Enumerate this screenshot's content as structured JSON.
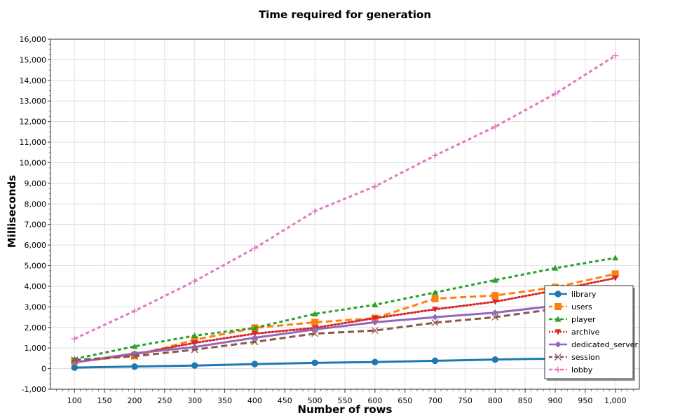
{
  "chart_data": {
    "type": "line",
    "title": "Time required for generation",
    "xlabel": "Number of rows",
    "ylabel": "Milliseconds",
    "xlim": [
      60,
      1040
    ],
    "ylim": [
      -1000,
      16000
    ],
    "x_ticks": [
      100,
      150,
      200,
      250,
      300,
      350,
      400,
      450,
      500,
      550,
      600,
      650,
      700,
      750,
      800,
      850,
      900,
      950,
      1000
    ],
    "x_tick_labels": [
      "100",
      "150",
      "200",
      "250",
      "300",
      "350",
      "400",
      "450",
      "500",
      "550",
      "600",
      "650",
      "700",
      "750",
      "800",
      "850",
      "900",
      "950",
      "1,000"
    ],
    "y_ticks": [
      -1000,
      0,
      1000,
      2000,
      3000,
      4000,
      5000,
      6000,
      7000,
      8000,
      9000,
      10000,
      11000,
      12000,
      13000,
      14000,
      15000,
      16000
    ],
    "y_tick_labels": [
      "-1,000",
      "0",
      "1,000",
      "2,000",
      "3,000",
      "4,000",
      "5,000",
      "6,000",
      "7,000",
      "8,000",
      "9,000",
      "10,000",
      "11,000",
      "12,000",
      "13,000",
      "14,000",
      "15,000",
      "16,000"
    ],
    "grid": true,
    "legend_position": "bottom-right",
    "x": [
      100,
      200,
      300,
      400,
      500,
      600,
      700,
      800,
      900,
      1000
    ],
    "series": [
      {
        "name": "library",
        "color": "#1f77b4",
        "dash": "solid",
        "marker": "circle",
        "values": [
          50,
          100,
          150,
          220,
          280,
          320,
          380,
          440,
          490,
          540
        ]
      },
      {
        "name": "users",
        "color": "#ff7f0e",
        "dash": "long",
        "marker": "square",
        "values": [
          350,
          620,
          1400,
          1980,
          2250,
          2450,
          3400,
          3550,
          3950,
          4600
        ]
      },
      {
        "name": "player",
        "color": "#2ca02c",
        "dash": "short",
        "marker": "triangle-up",
        "values": [
          470,
          1080,
          1600,
          1980,
          2660,
          3100,
          3700,
          4300,
          4880,
          5380
        ]
      },
      {
        "name": "archive",
        "color": "#d62728",
        "dash": "dot",
        "marker": "triangle-down",
        "values": [
          300,
          700,
          1250,
          1700,
          1980,
          2450,
          2880,
          3250,
          3800,
          4400
        ]
      },
      {
        "name": "dedicated_server",
        "color": "#9467bd",
        "dash": "solid",
        "marker": "diamond",
        "values": [
          300,
          740,
          1050,
          1500,
          1900,
          2250,
          2500,
          2720,
          3050,
          3250
        ]
      },
      {
        "name": "session",
        "color": "#8c564b",
        "dash": "long",
        "marker": "x",
        "values": [
          420,
          600,
          920,
          1300,
          1700,
          1850,
          2230,
          2500,
          2900,
          3100
        ]
      },
      {
        "name": "lobby",
        "color": "#e377c2",
        "dash": "short",
        "marker": "plus",
        "values": [
          1450,
          2800,
          4250,
          5850,
          7650,
          8850,
          10350,
          11750,
          13350,
          15200
        ]
      }
    ]
  }
}
